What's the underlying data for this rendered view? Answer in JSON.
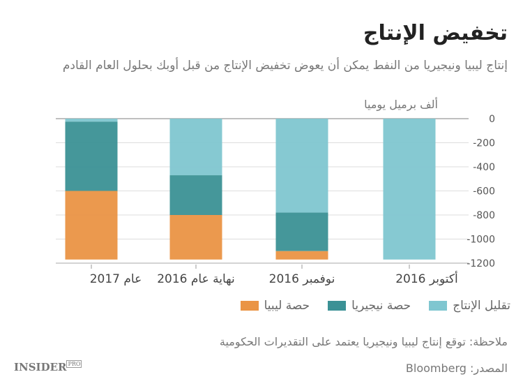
{
  "title": "تخفيض الإنتاج",
  "subtitle": "إنتاج ليبيا ونيجيريا من النفط يمكن أن يعوض تخفيض الإنتاج من قبل أوبك بحلول العام القادم",
  "unit": "ألف برميل يوميا",
  "note": "ملاحظة: توقع إنتاج ليبيا ونيجيريا يعتمد على التقديرات الحكومية",
  "source": "المصدر: Bloomberg",
  "logo": "INSIDER PRO",
  "chart_data": {
    "type": "bar",
    "stacked": true,
    "categories": [
      "أكتوبر 2016",
      "نوفمبر 2016",
      "نهاية عام 2016",
      "عام 2017"
    ],
    "category_order": "right-to-left",
    "ylim": [
      -1200,
      0
    ],
    "yticks": [
      0,
      -200,
      -400,
      -600,
      -800,
      -1000,
      -1200
    ],
    "grid": true,
    "legend_position": "bottom",
    "series": [
      {
        "name": "تقليل الإنتاج",
        "color": "#7fc6d0",
        "values": [
          -1170,
          -780,
          -470,
          -25
        ]
      },
      {
        "name": "حصة نيجيريا",
        "color": "#3b9195",
        "values": [
          0,
          -320,
          -330,
          -575
        ]
      },
      {
        "name": "حصة ليبيا",
        "color": "#ea9445",
        "values": [
          0,
          -70,
          -370,
          -570
        ]
      }
    ]
  }
}
